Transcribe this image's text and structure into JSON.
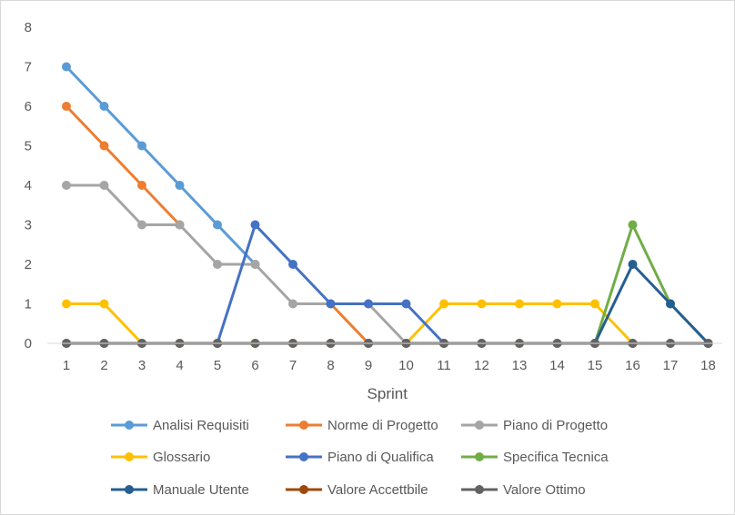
{
  "chart_data": {
    "type": "line",
    "title": "",
    "xlabel": "Sprint",
    "ylabel": "",
    "x": [
      1,
      2,
      3,
      4,
      5,
      6,
      7,
      8,
      9,
      10,
      11,
      12,
      13,
      14,
      15,
      16,
      17,
      18
    ],
    "ylim": [
      0,
      8
    ],
    "yticks": [
      0,
      1,
      2,
      3,
      4,
      5,
      6,
      7,
      8
    ],
    "grid": false,
    "legend_position": "bottom",
    "series": [
      {
        "name": "Analisi Requisiti",
        "color": "#5B9BD5",
        "values": [
          7,
          6,
          5,
          4,
          3,
          2,
          null,
          null,
          null,
          null,
          null,
          null,
          null,
          null,
          null,
          null,
          null,
          null
        ]
      },
      {
        "name": "Norme di Progetto",
        "color": "#ED7D31",
        "values": [
          6,
          5,
          4,
          3,
          null,
          null,
          null,
          1,
          0,
          null,
          null,
          null,
          null,
          null,
          null,
          null,
          null,
          null
        ]
      },
      {
        "name": "Piano di Progetto",
        "color": "#A5A5A5",
        "values": [
          4,
          4,
          3,
          3,
          2,
          2,
          1,
          1,
          1,
          0,
          null,
          null,
          null,
          null,
          null,
          null,
          null,
          null
        ]
      },
      {
        "name": "Glossario",
        "color": "#FFC000",
        "values": [
          1,
          1,
          0,
          0,
          0,
          0,
          0,
          0,
          0,
          0,
          1,
          1,
          1,
          1,
          1,
          0,
          0,
          0
        ]
      },
      {
        "name": "Piano di Qualifica",
        "color": "#4472C4",
        "values": [
          null,
          null,
          null,
          null,
          0,
          3,
          2,
          1,
          1,
          1,
          0,
          null,
          null,
          null,
          null,
          null,
          null,
          null
        ]
      },
      {
        "name": "Specifica Tecnica",
        "color": "#70AD47",
        "values": [
          null,
          null,
          null,
          null,
          null,
          null,
          null,
          null,
          null,
          null,
          null,
          null,
          null,
          null,
          0,
          3,
          1,
          0
        ]
      },
      {
        "name": "Manuale Utente",
        "color": "#255E91",
        "values": [
          null,
          null,
          null,
          null,
          null,
          null,
          null,
          null,
          null,
          null,
          null,
          null,
          null,
          null,
          0,
          2,
          1,
          0
        ]
      },
      {
        "name": "Valore Accettbile",
        "color": "#9E480E",
        "values": [
          0,
          0,
          0,
          0,
          0,
          0,
          0,
          0,
          0,
          0,
          0,
          0,
          0,
          0,
          0,
          0,
          0,
          0
        ]
      },
      {
        "name": "Valore Ottimo",
        "color": "#636363",
        "values": [
          0,
          0,
          0,
          0,
          0,
          0,
          0,
          0,
          0,
          0,
          0,
          0,
          0,
          0,
          0,
          0,
          0,
          0
        ]
      }
    ]
  }
}
